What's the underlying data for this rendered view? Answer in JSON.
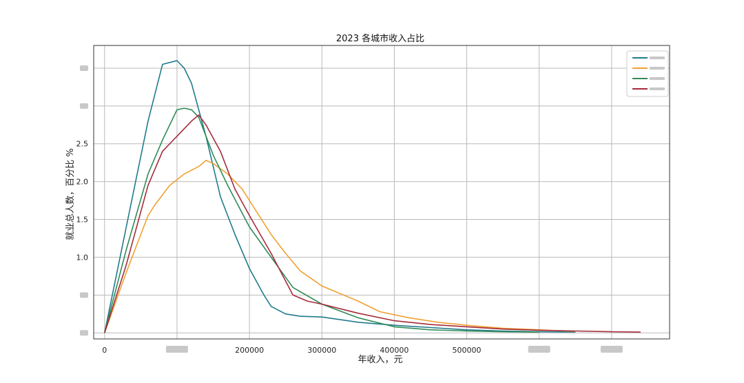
{
  "chart_data": {
    "type": "line",
    "title": "2023 各城市收入占比",
    "xlabel": "年收入，元",
    "ylabel": "就业总人数，百分比 %",
    "xlim": [
      -15000,
      780000
    ],
    "ylim": [
      -0.08,
      3.8
    ],
    "x_ticks": [
      {
        "value": 0,
        "label": "0"
      },
      {
        "value": 100000,
        "label": ""
      },
      {
        "value": 200000,
        "label": "200000"
      },
      {
        "value": 300000,
        "label": "300000"
      },
      {
        "value": 400000,
        "label": "400000"
      },
      {
        "value": 500000,
        "label": "500000"
      },
      {
        "value": 600000,
        "label": ""
      },
      {
        "value": 700000,
        "label": ""
      }
    ],
    "y_ticks": [
      {
        "value": 0.0,
        "label": ""
      },
      {
        "value": 0.5,
        "label": ""
      },
      {
        "value": 1.0,
        "label": "1.0"
      },
      {
        "value": 1.5,
        "label": "1.5"
      },
      {
        "value": 2.0,
        "label": "2.0"
      },
      {
        "value": 2.5,
        "label": "2.5"
      },
      {
        "value": 3.0,
        "label": ""
      },
      {
        "value": 3.5,
        "label": ""
      }
    ],
    "grid": true,
    "legend_position": "top-right",
    "series": [
      {
        "color": "#1f7a8c",
        "x": [
          0,
          30000,
          60000,
          80000,
          100000,
          110000,
          120000,
          140000,
          160000,
          180000,
          200000,
          220000,
          230000,
          250000,
          270000,
          300000,
          350000,
          400000,
          450000,
          500000,
          550000,
          600000,
          650000
        ],
        "y": [
          0,
          1.4,
          2.8,
          3.55,
          3.6,
          3.5,
          3.3,
          2.6,
          1.8,
          1.3,
          0.85,
          0.5,
          0.35,
          0.25,
          0.22,
          0.21,
          0.14,
          0.1,
          0.07,
          0.04,
          0.025,
          0.015,
          0.01
        ]
      },
      {
        "color": "#f0a030",
        "x": [
          0,
          30000,
          60000,
          70000,
          90000,
          110000,
          130000,
          140000,
          150000,
          170000,
          190000,
          210000,
          230000,
          250000,
          270000,
          300000,
          350000,
          380000,
          420000,
          460000,
          500000,
          550000,
          600000,
          650000
        ],
        "y": [
          0,
          0.8,
          1.55,
          1.7,
          1.95,
          2.1,
          2.2,
          2.28,
          2.24,
          2.1,
          1.9,
          1.6,
          1.3,
          1.05,
          0.82,
          0.62,
          0.42,
          0.28,
          0.2,
          0.14,
          0.1,
          0.06,
          0.04,
          0.02
        ]
      },
      {
        "color": "#2e8b57",
        "x": [
          0,
          30000,
          60000,
          80000,
          100000,
          110000,
          120000,
          130000,
          150000,
          170000,
          200000,
          230000,
          260000,
          300000,
          350000,
          400000,
          450000,
          500000,
          550000,
          600000
        ],
        "y": [
          0,
          1.1,
          2.1,
          2.55,
          2.95,
          2.97,
          2.95,
          2.85,
          2.35,
          1.95,
          1.4,
          1.0,
          0.6,
          0.38,
          0.2,
          0.08,
          0.04,
          0.025,
          0.015,
          0.01
        ]
      },
      {
        "color": "#a52a3a",
        "x": [
          0,
          30000,
          60000,
          80000,
          100000,
          120000,
          130000,
          140000,
          160000,
          180000,
          200000,
          230000,
          260000,
          280000,
          300000,
          350000,
          400000,
          450000,
          500000,
          550000,
          600000,
          650000,
          700000,
          740000
        ],
        "y": [
          0,
          0.9,
          1.95,
          2.4,
          2.6,
          2.8,
          2.88,
          2.75,
          2.4,
          1.9,
          1.55,
          1.05,
          0.5,
          0.42,
          0.38,
          0.26,
          0.16,
          0.11,
          0.08,
          0.05,
          0.035,
          0.025,
          0.015,
          0.01
        ]
      }
    ]
  }
}
